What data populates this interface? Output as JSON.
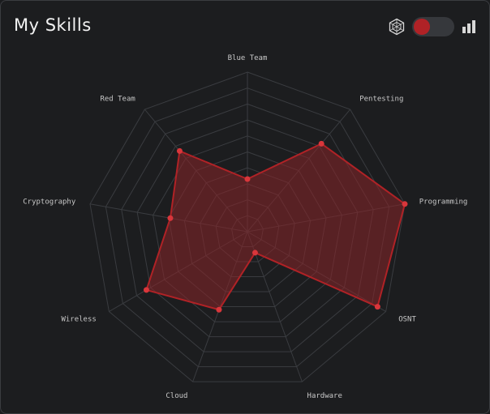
{
  "header": {
    "title": "My Skills",
    "radar_icon": "radar-chart-icon",
    "bar_icon": "bar-chart-icon",
    "toggle_on": true
  },
  "colors": {
    "accent": "#b02226",
    "series_fill": "#8a2428",
    "grid": "#3a3c40",
    "text": "#c8c8c8"
  },
  "chart_data": {
    "type": "radar",
    "categories": [
      "Blue Team",
      "Pentesting",
      "Programming",
      "OSNT",
      "Hardware",
      "Cloud",
      "Wireless",
      "Cryptography",
      "Red Team"
    ],
    "range": [
      0,
      10
    ],
    "grid_levels": 10,
    "series": [
      {
        "values": [
          3.3,
          7.2,
          10.0,
          9.4,
          1.4,
          5.2,
          7.3,
          4.9,
          6.6
        ]
      }
    ]
  }
}
